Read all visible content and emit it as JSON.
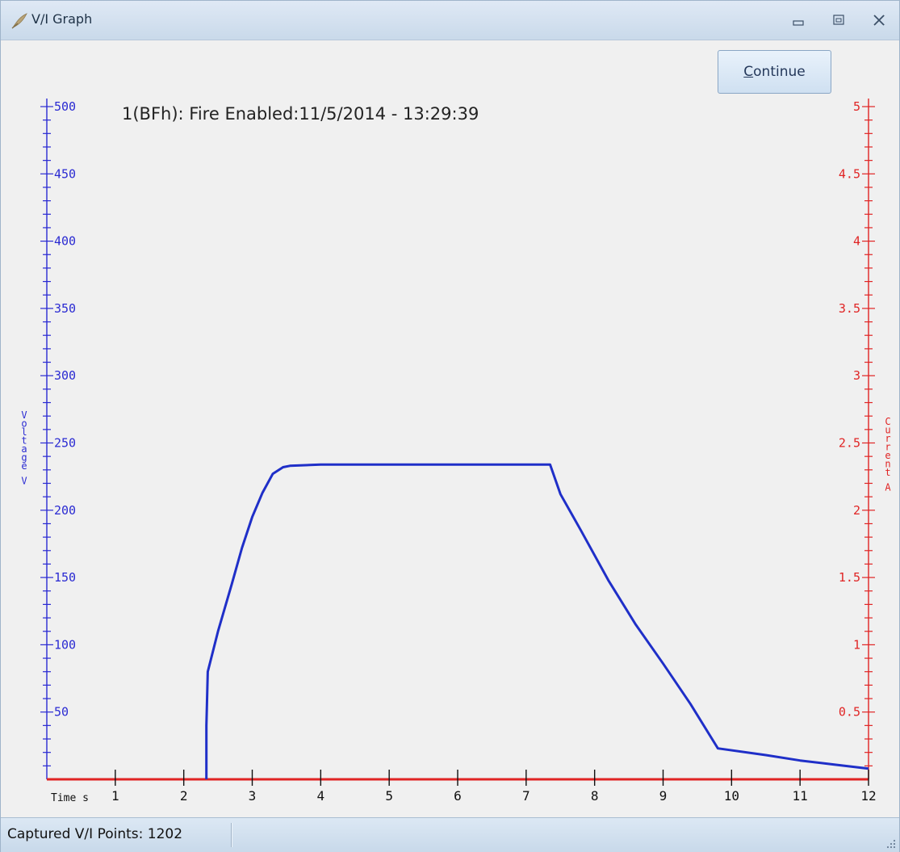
{
  "window": {
    "title": "V/I Graph",
    "controls": [
      "minimize-icon",
      "restore-icon",
      "close-icon"
    ]
  },
  "toolbar": {
    "continue_mnemonic": "C",
    "continue_rest": "ontinue"
  },
  "graph_title": "1(BFh): Fire Enabled:11/5/2014 - 13:29:39",
  "statusbar": {
    "text": "Captured V/I Points: 1202"
  },
  "colors": {
    "voltage_axis": "#2a2ad2",
    "current_axis": "#e02424",
    "series": "#1f2fc8",
    "time_axis": "#e02424"
  },
  "chart_data": {
    "type": "line",
    "xlabel": "Time s",
    "x_ticks": [
      1,
      2,
      3,
      4,
      5,
      6,
      7,
      8,
      9,
      10,
      11,
      12
    ],
    "xlim": [
      0,
      12
    ],
    "y_left": {
      "label": "Voltage V",
      "ticks": [
        50,
        100,
        150,
        200,
        250,
        300,
        350,
        400,
        450,
        500
      ],
      "ylim": [
        0,
        500
      ]
    },
    "y_right": {
      "label": "Current A",
      "tick_labels": [
        "0.5",
        "1",
        "1.5",
        "2",
        "2.5",
        "3",
        "3.5",
        "4",
        "4.5",
        "5"
      ],
      "ticks": [
        0.5,
        1,
        1.5,
        2,
        2.5,
        3,
        3.5,
        4,
        4.5,
        5
      ],
      "ylim": [
        0,
        5
      ]
    },
    "series": [
      {
        "axis": "voltage",
        "x": [
          2.33,
          2.33,
          2.35,
          2.5,
          2.7,
          2.85,
          3.0,
          3.15,
          3.3,
          3.45,
          3.55,
          4.0,
          7.35,
          7.5,
          7.8,
          8.2,
          8.6,
          9.0,
          9.4,
          9.8,
          10.5,
          11.0,
          11.5,
          12.0
        ],
        "y": [
          0,
          40,
          80,
          110,
          145,
          172,
          195,
          213,
          227,
          232,
          233,
          234,
          234,
          212,
          185,
          148,
          115,
          86,
          56,
          23,
          18,
          14,
          11,
          8
        ]
      }
    ]
  }
}
